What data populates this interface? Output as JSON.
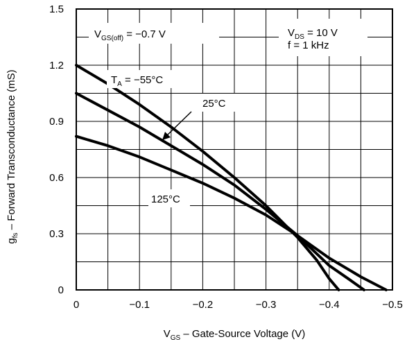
{
  "chart_data": {
    "type": "line",
    "xlabel": {
      "main": "V",
      "sub": "GS",
      "rest": " – Gate-Source Voltage (V)"
    },
    "ylabel": {
      "main": "g",
      "sub": "fs",
      "rest": " – Forward Transconductance (mS)"
    },
    "xlim": [
      0,
      -0.5
    ],
    "ylim": [
      0,
      1.5
    ],
    "x_ticks": [
      "0",
      "−0.1",
      "−0.2",
      "−0.3",
      "−0.4",
      "−0.5"
    ],
    "y_ticks": [
      "0",
      "0.3",
      "0.6",
      "0.9",
      "1.2",
      "1.5"
    ],
    "grid": true,
    "series": [
      {
        "name": "T_A = −55°C",
        "x": [
          0,
          -0.05,
          -0.1,
          -0.15,
          -0.2,
          -0.25,
          -0.3,
          -0.35,
          -0.38,
          -0.4,
          -0.415
        ],
        "y": [
          1.2,
          1.1,
          0.99,
          0.87,
          0.74,
          0.6,
          0.45,
          0.28,
          0.16,
          0.06,
          0.0
        ]
      },
      {
        "name": "25°C",
        "x": [
          0,
          -0.05,
          -0.1,
          -0.15,
          -0.2,
          -0.25,
          -0.3,
          -0.35,
          -0.4,
          -0.43,
          -0.455
        ],
        "y": [
          1.05,
          0.96,
          0.87,
          0.77,
          0.67,
          0.56,
          0.43,
          0.29,
          0.13,
          0.06,
          0.0
        ]
      },
      {
        "name": "125°C",
        "x": [
          0,
          -0.05,
          -0.1,
          -0.15,
          -0.2,
          -0.25,
          -0.3,
          -0.35,
          -0.4,
          -0.45,
          -0.49
        ],
        "y": [
          0.82,
          0.77,
          0.71,
          0.64,
          0.57,
          0.49,
          0.4,
          0.29,
          0.17,
          0.07,
          0.0
        ]
      }
    ],
    "annotations": [
      {
        "id": "vgsoff",
        "parts": [
          {
            "t": "V",
            "sub": false
          },
          {
            "t": "GS(off)",
            "sub": true
          },
          {
            "t": " = −0.7 V",
            "sub": false
          }
        ]
      },
      {
        "id": "vds",
        "parts": [
          {
            "t": "V",
            "sub": false
          },
          {
            "t": "DS",
            "sub": true
          },
          {
            "t": " = 10 V",
            "sub": false
          }
        ]
      },
      {
        "id": "freq",
        "parts": [
          {
            "t": "f = 1 kHz",
            "sub": false
          }
        ]
      },
      {
        "id": "ta",
        "parts": [
          {
            "t": "T",
            "sub": false
          },
          {
            "t": "A",
            "sub": true
          },
          {
            "t": " = −55°C",
            "sub": false
          }
        ]
      },
      {
        "id": "t25",
        "parts": [
          {
            "t": "25°C",
            "sub": false
          }
        ]
      },
      {
        "id": "t125",
        "parts": [
          {
            "t": "125°C",
            "sub": false
          }
        ]
      }
    ]
  }
}
